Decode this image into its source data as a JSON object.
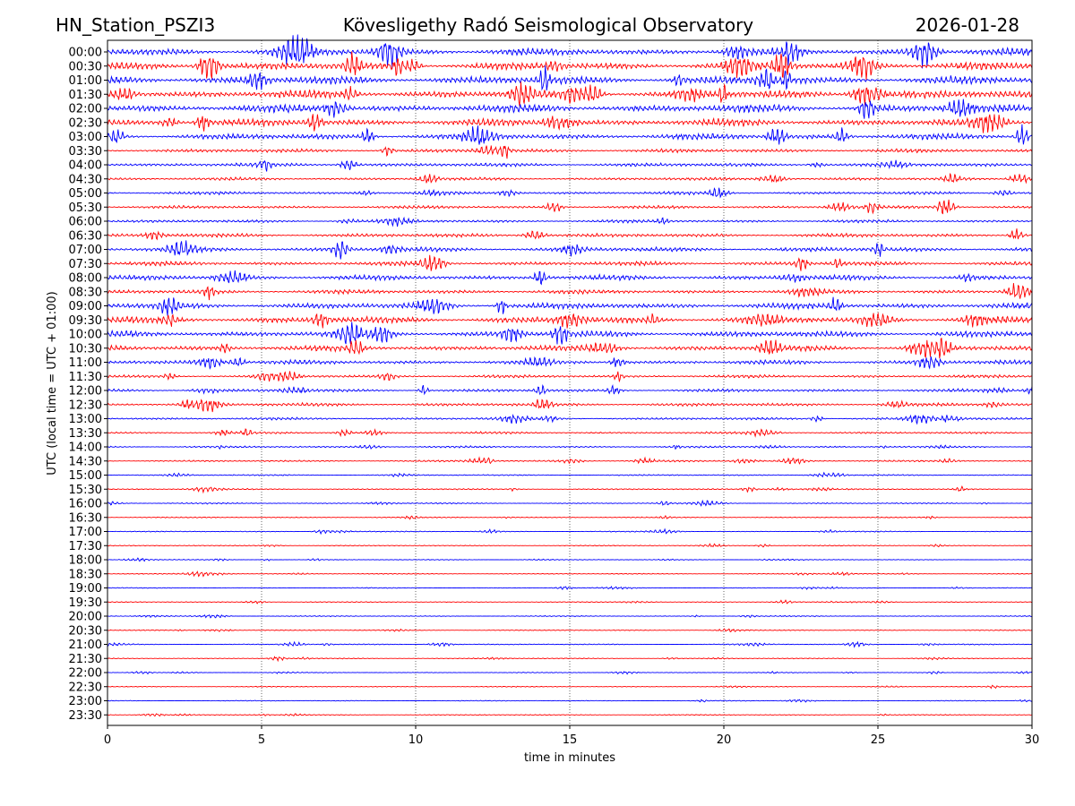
{
  "header": {
    "station": "HN_Station_PSZI3",
    "observatory": "Kövesligethy Radó Seismological Observatory",
    "date": "2026-01-28"
  },
  "chart_data": {
    "type": "line",
    "title": "Kövesligethy Radó Seismological Observatory",
    "xlabel": "time in minutes",
    "ylabel": "UTC (local time = UTC + 01:00)",
    "xlim": [
      0,
      30
    ],
    "x_ticks": [
      "0",
      "5",
      "10",
      "15",
      "20",
      "25",
      "30"
    ],
    "row_labels": [
      "00:00",
      "00:30",
      "01:00",
      "01:30",
      "02:00",
      "02:30",
      "03:00",
      "03:30",
      "04:00",
      "04:30",
      "05:00",
      "05:30",
      "06:00",
      "06:30",
      "07:00",
      "07:30",
      "08:00",
      "08:30",
      "09:00",
      "09:30",
      "10:00",
      "10:30",
      "11:00",
      "11:30",
      "12:00",
      "12:30",
      "13:00",
      "13:30",
      "14:00",
      "14:30",
      "15:00",
      "15:30",
      "16:00",
      "16:30",
      "17:00",
      "17:30",
      "18:00",
      "18:30",
      "19:00",
      "19:30",
      "20:00",
      "20:30",
      "21:00",
      "21:30",
      "22:00",
      "22:30",
      "23:00",
      "23:30"
    ],
    "relative_amplitude": [
      0.85,
      0.9,
      0.95,
      0.95,
      0.95,
      0.85,
      0.7,
      0.45,
      0.45,
      0.35,
      0.35,
      0.35,
      0.35,
      0.45,
      0.55,
      0.5,
      0.6,
      0.5,
      0.7,
      0.8,
      0.75,
      0.65,
      0.5,
      0.35,
      0.35,
      0.4,
      0.3,
      0.25,
      0.22,
      0.2,
      0.15,
      0.15,
      0.15,
      0.12,
      0.12,
      0.1,
      0.1,
      0.1,
      0.1,
      0.1,
      0.12,
      0.1,
      0.12,
      0.1,
      0.1,
      0.1,
      0.1,
      0.1
    ],
    "trace_colors": [
      "#0000ff",
      "#ff0000"
    ],
    "grid": "vertical dotted every 5 minutes"
  }
}
